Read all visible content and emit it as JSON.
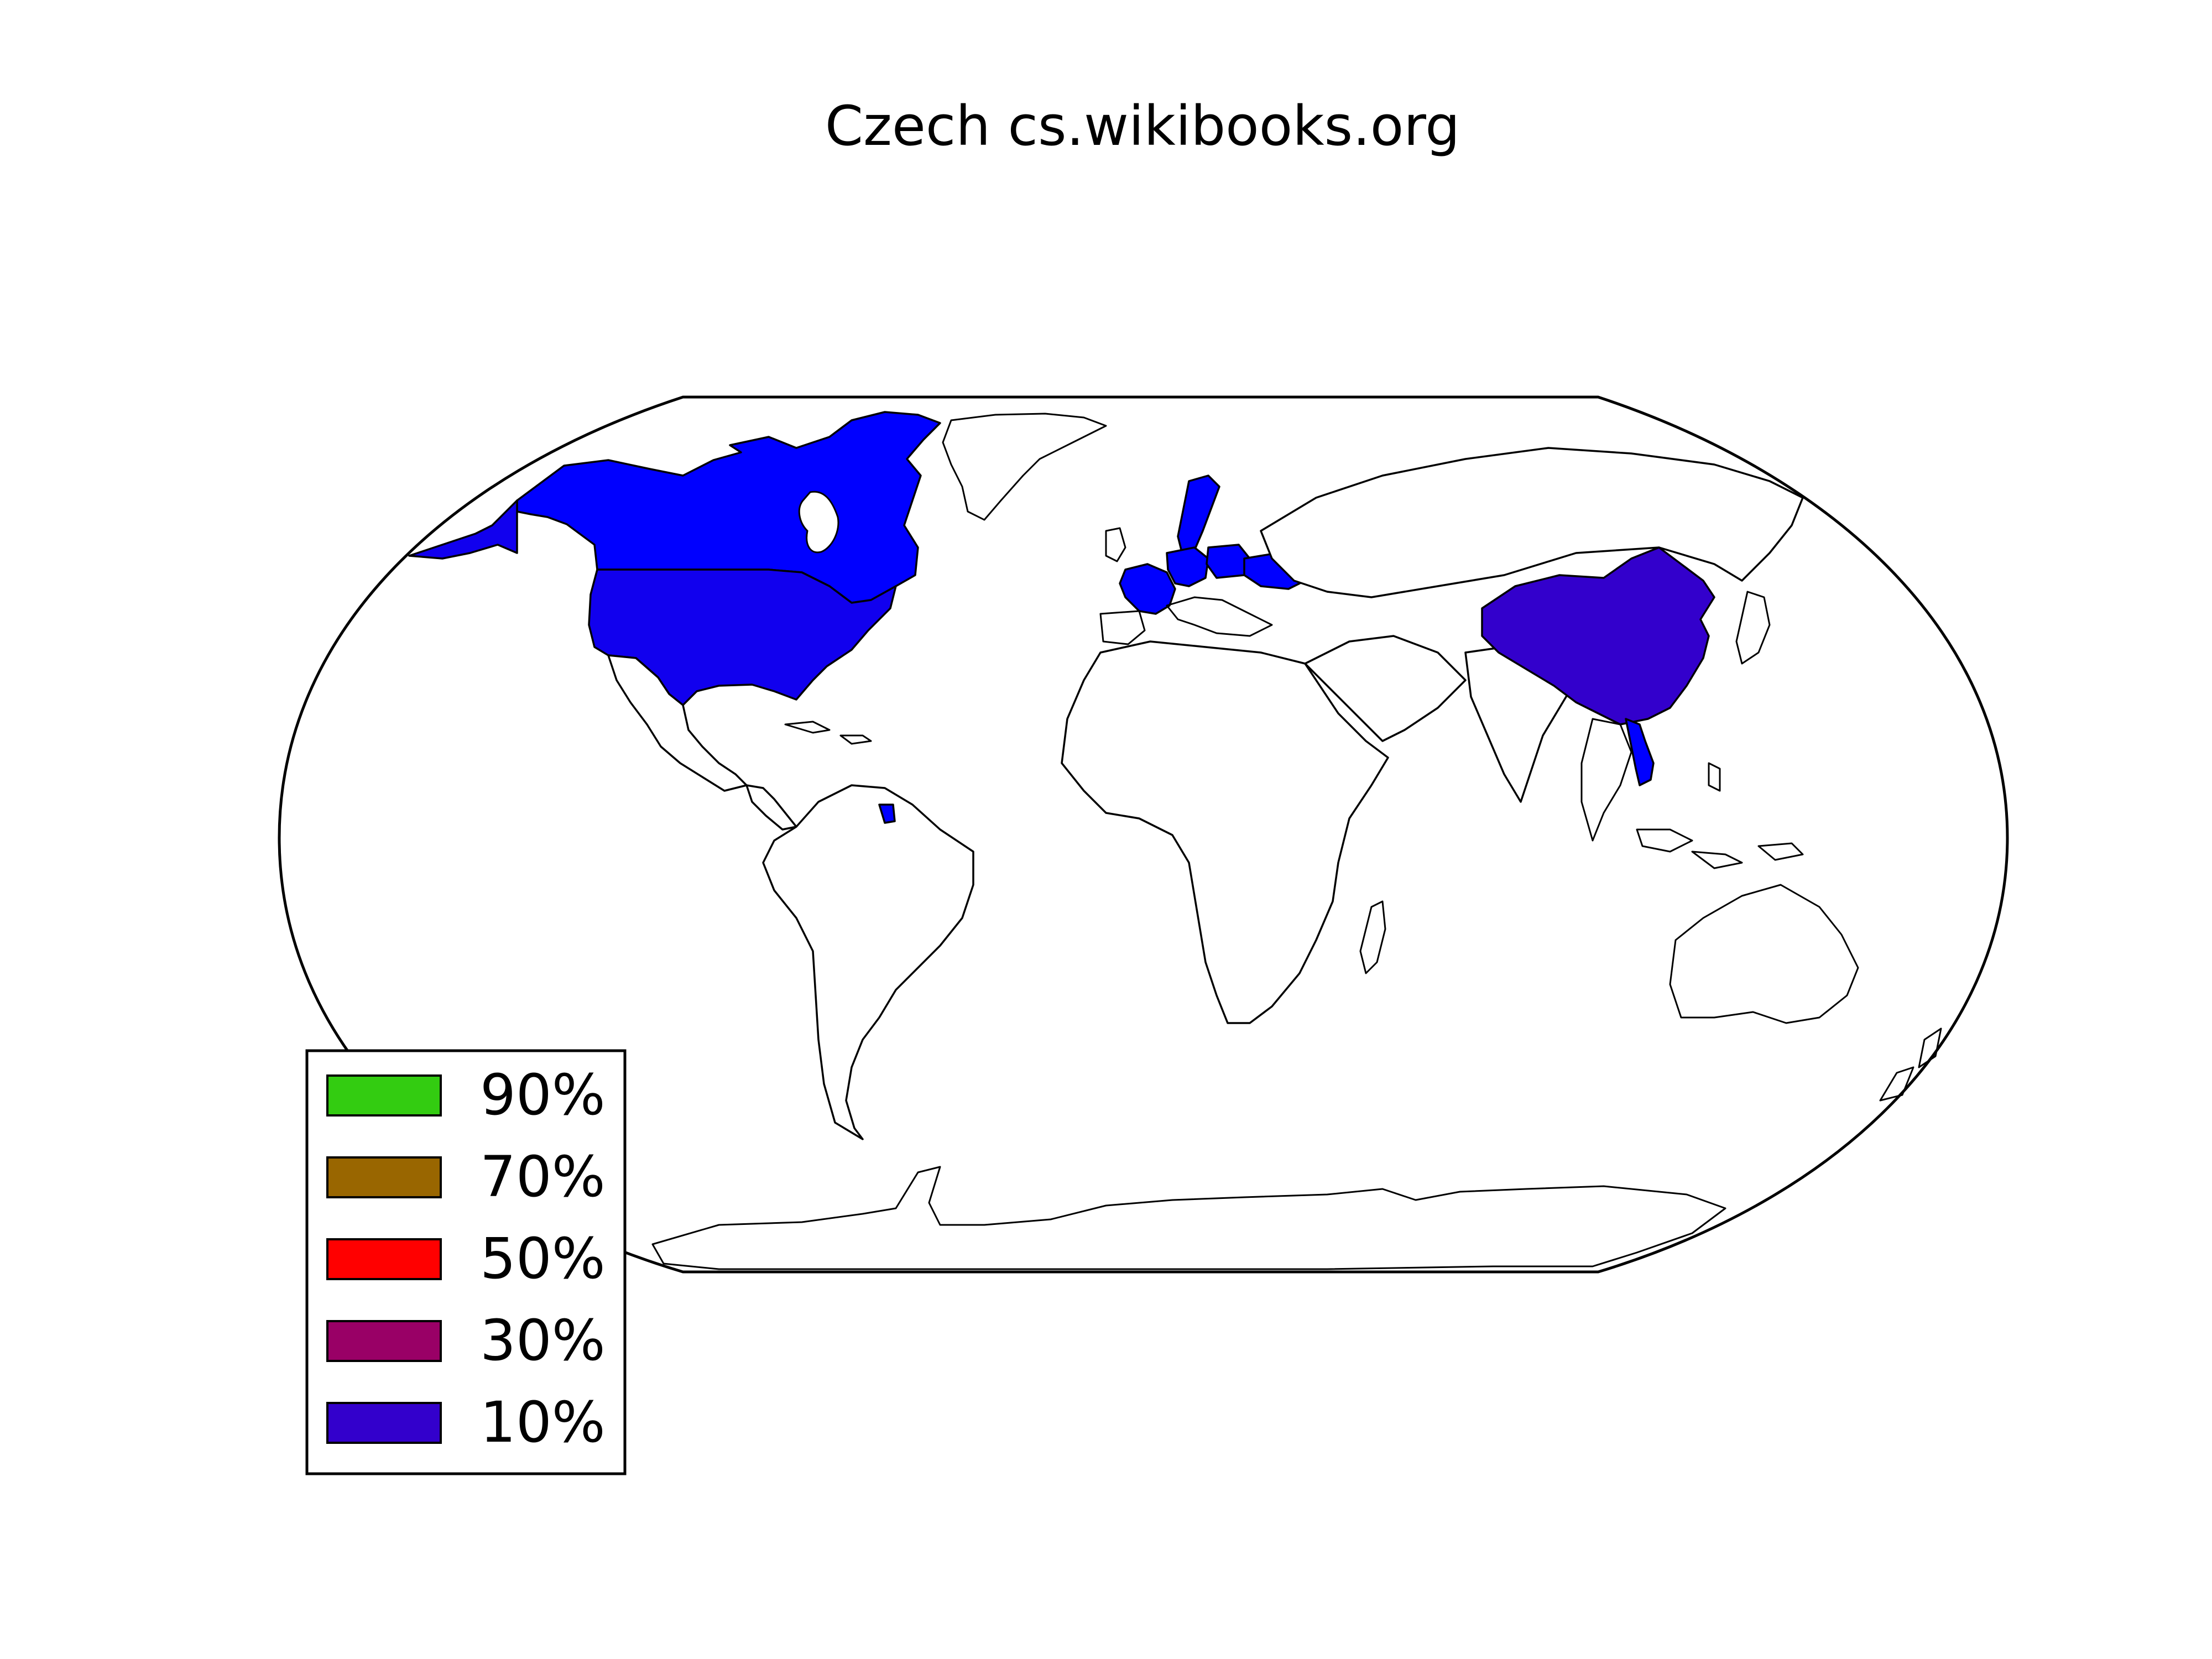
{
  "title": "Czech cs.wikibooks.org",
  "legend": [
    {
      "label": "90%",
      "color": "#33cc11"
    },
    {
      "label": "70%",
      "color": "#996600"
    },
    {
      "label": "50%",
      "color": "#ff0000"
    },
    {
      "label": "30%",
      "color": "#990066"
    },
    {
      "label": "10%",
      "color": "#3300cc"
    }
  ],
  "colors": {
    "ocean": "#ffffff",
    "land": "#ffffff",
    "border": "#000000",
    "low_share_blue": "#0000ff"
  },
  "map": {
    "projection": "Robinson",
    "highlighted_regions": [
      {
        "name": "Canada",
        "share": "10%",
        "color": "#0000ff"
      },
      {
        "name": "United States",
        "share": "10%",
        "color": "#1100ee"
      },
      {
        "name": "China",
        "share": "10%",
        "color": "#3300cc"
      },
      {
        "name": "Vietnam",
        "share": "10%",
        "color": "#0000ff"
      },
      {
        "name": "France",
        "share": "10%",
        "color": "#0000ff"
      },
      {
        "name": "Germany",
        "share": "10%",
        "color": "#0000ff"
      },
      {
        "name": "Poland",
        "share": "10%",
        "color": "#0000ff"
      },
      {
        "name": "Ukraine",
        "share": "10%",
        "color": "#0000ff"
      },
      {
        "name": "Sweden",
        "share": "10%",
        "color": "#0000ff"
      },
      {
        "name": "French Guiana",
        "share": "10%",
        "color": "#0000ff"
      }
    ]
  }
}
